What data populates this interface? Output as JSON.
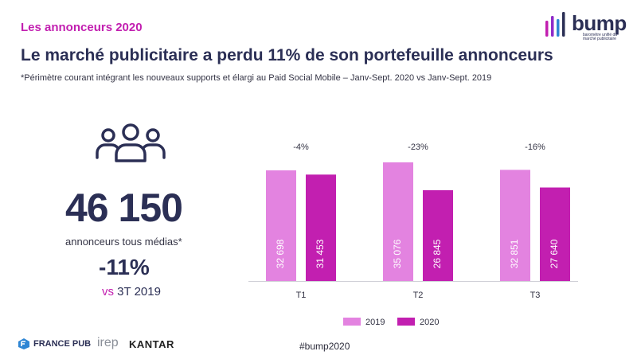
{
  "section_label": "Les annonceurs 2020",
  "brand": {
    "word": "bump",
    "tagline": "baromètre unifié du marché publicitaire",
    "bar_colors": [
      "#c21fb0",
      "#8e2bc9",
      "#2f86d4",
      "#2b2f55"
    ]
  },
  "headline": "Le marché publicitaire a perdu 11% de son portefeuille annonceurs",
  "subtitle": "*Périmètre courant intégrant les nouveaux supports et élargi au Paid Social Mobile – Janv-Sept. 2020 vs Janv-Sept. 2019",
  "kpi": {
    "icon": "people-group-icon",
    "value": "46 150",
    "caption": "annonceurs tous médias*",
    "delta": "-11%",
    "delta_caption_prefix": "vs",
    "delta_caption_rest": "3T 2019"
  },
  "chart_data": {
    "type": "bar",
    "categories": [
      "T1",
      "T2",
      "T3"
    ],
    "series": [
      {
        "name": "2019",
        "values": [
          32698,
          35076,
          32851
        ],
        "color": "#e383e0"
      },
      {
        "name": "2020",
        "values": [
          31453,
          26845,
          27640
        ],
        "color": "#c21fb0"
      }
    ],
    "value_labels": {
      "2019": [
        "32 698",
        "35 076",
        "32 851"
      ],
      "2020": [
        "31 453",
        "26 845",
        "27 640"
      ]
    },
    "change_labels": [
      "-4%",
      "-23%",
      "-16%"
    ],
    "ylim": [
      0,
      36000
    ],
    "grid": false,
    "legend_position": "bottom"
  },
  "footer": {
    "logos": [
      "FRANCE PUB",
      "irep",
      "KANTAR"
    ],
    "hashtag": "#bump2020"
  }
}
